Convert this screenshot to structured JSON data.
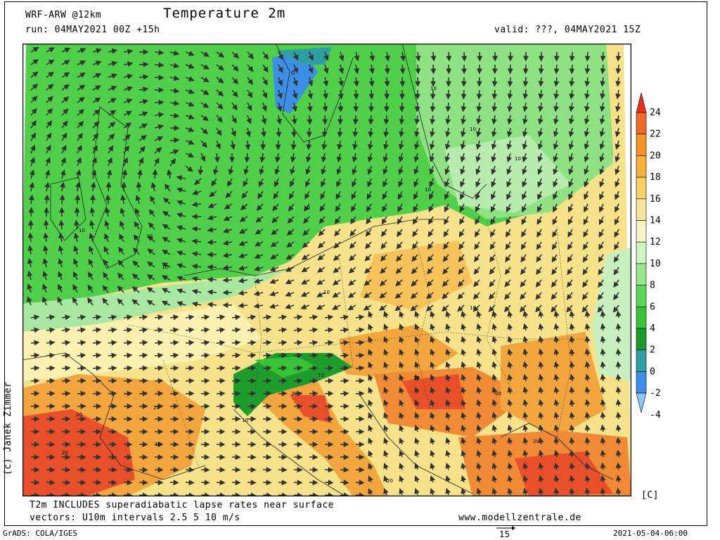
{
  "header": {
    "model": "WRF-ARW @12km",
    "title": "Temperature 2m",
    "run": "run: 04MAY2021 00Z +15h",
    "valid": "valid: ???, 04MAY2021 15Z"
  },
  "footer": {
    "note1": "T2m INCLUDES superadiabatic lapse rates near surface",
    "note2": "vectors: U10m intervals 2.5 5 10 m/s",
    "website": "www.modellzentrale.de",
    "grads": "GrADS: COLA/IGES",
    "timestamp": "2021-05-04-06:00",
    "vector_ref": "15",
    "credit": "(c) Janek Zimmer"
  },
  "legend": {
    "unit": "[C]",
    "levels": [
      "24",
      "22",
      "20",
      "18",
      "16",
      "14",
      "12",
      "10",
      "8",
      "6",
      "4",
      "2",
      "0",
      "-2",
      "-4"
    ],
    "colors": [
      "#e8321e",
      "#f06b26",
      "#f59529",
      "#f8b140",
      "#f9cd68",
      "#f9e39a",
      "#fbf3c8",
      "#d2f5c4",
      "#98e68e",
      "#5cd95a",
      "#38c238",
      "#1a9a2a",
      "#2f9fa3",
      "#3d8fe6",
      "#8fc4f5"
    ]
  },
  "map": {
    "contour_labels": [
      "D",
      "10",
      "10",
      "10",
      "10",
      "10",
      "10",
      "10",
      "10",
      "10",
      "10",
      "10",
      "10",
      "10",
      "20",
      "20",
      "20",
      "20",
      "20",
      "20",
      "20",
      "20"
    ],
    "colors": {
      "sea_green": "#4fcf4a",
      "land_green": "#6ed86a",
      "pale_green": "#a8e8a0",
      "yellow": "#f6e28a",
      "orange": "#f3a640",
      "red": "#e8502c",
      "blue": "#3d8fe6",
      "dark_green": "#1f9d2c"
    }
  }
}
